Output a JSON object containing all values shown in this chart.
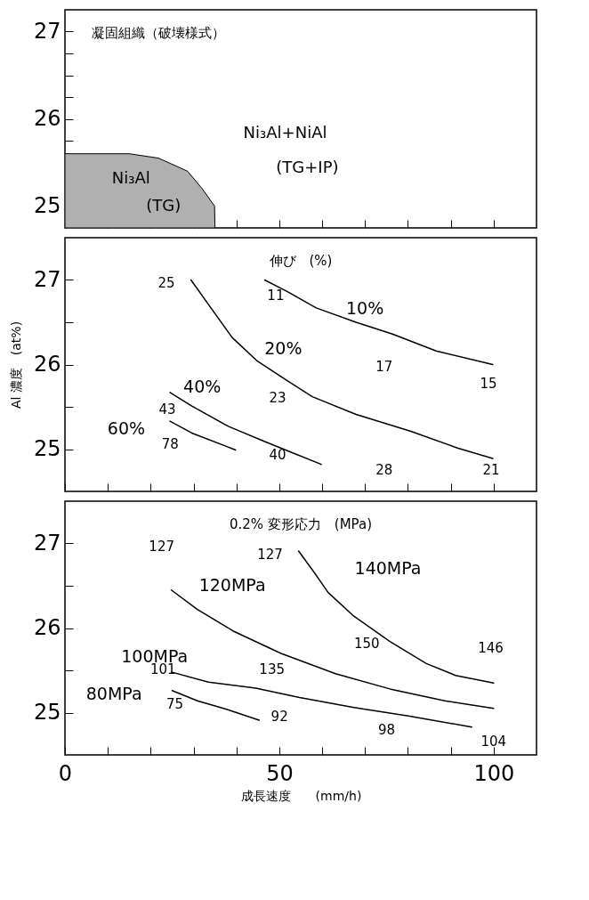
{
  "chart_data": [
    {
      "type": "area",
      "title": "凝固組織（破壊様式）",
      "tick_labels": "y",
      "xlim": [
        0,
        110
      ],
      "ylim": [
        24.75,
        27.25
      ],
      "xticks": [
        0,
        {
          "value": 10,
          "label": null
        },
        {
          "value": 20,
          "label": null
        },
        {
          "value": 30,
          "label": null
        },
        {
          "value": 40,
          "label": null
        },
        50,
        {
          "value": 60,
          "label": null
        },
        {
          "value": 70,
          "label": null
        },
        {
          "value": 80,
          "label": null
        },
        {
          "value": 90,
          "label": null
        },
        100
      ],
      "yticks": [
        25,
        {
          "value": 25.25,
          "label": null
        },
        {
          "value": 25.5,
          "label": null
        },
        {
          "value": 25.75,
          "label": null
        },
        26,
        {
          "value": 26.25,
          "label": null
        },
        {
          "value": 26.5,
          "label": null
        },
        {
          "value": 26.75,
          "label": null
        },
        27
      ],
      "series": [
        {
          "color": "#b0b0b0",
          "x": [
            0,
            15,
            21.8,
            28.6,
            32,
            34.9,
            35
          ],
          "values": [
            25.6,
            25.6,
            25.55,
            25.4,
            25.2,
            25.0,
            24.75
          ]
        }
      ],
      "annotations": [
        "Ni₃Al+NiAl",
        "(TG+IP)",
        "Ni₃Al",
        "(TG)"
      ]
    },
    {
      "type": "line",
      "title": "伸び　(%)",
      "ylabel": "Al 濃度　(at%)",
      "tick_labels": "y",
      "xlim": [
        0,
        110
      ],
      "ylim": [
        24.5,
        27.5
      ],
      "xticks": [
        0,
        {
          "value": 10,
          "label": null
        },
        {
          "value": 20,
          "label": null
        },
        {
          "value": 30,
          "label": null
        },
        {
          "value": 40,
          "label": null
        },
        50,
        {
          "value": 60,
          "label": null
        },
        {
          "value": 70,
          "label": null
        },
        {
          "value": 80,
          "label": null
        },
        {
          "value": 90,
          "label": null
        },
        100
      ],
      "yticks": [
        25,
        {
          "value": 25.5,
          "label": null
        },
        26,
        {
          "value": 26.5,
          "label": null
        },
        27
      ],
      "series": [
        {
          "name": "10%",
          "color": "#000000",
          "x": [
            46.6,
            52,
            58.6,
            67.9,
            76.4,
            86.6,
            99.8
          ],
          "values": [
            27.0,
            26.86,
            26.67,
            26.5,
            26.36,
            26.16,
            26.0
          ]
        },
        {
          "name": "20%",
          "color": "#000000",
          "x": [
            29.4,
            33.9,
            39,
            44.9,
            50.9,
            57.7,
            67.9,
            80.7,
            91.7,
            99.8
          ],
          "values": [
            27.0,
            26.68,
            26.32,
            26.04,
            25.84,
            25.62,
            25.41,
            25.21,
            25.01,
            24.89
          ]
        },
        {
          "name": "40%",
          "color": "#000000",
          "x": [
            24.5,
            29.6,
            38.1,
            46.6,
            53.4,
            59.8
          ],
          "values": [
            25.67,
            25.51,
            25.27,
            25.09,
            24.95,
            24.82
          ]
        },
        {
          "name": "60%",
          "color": "#000000",
          "x": [
            24.5,
            29.6,
            39.8
          ],
          "values": [
            25.33,
            25.19,
            24.99
          ]
        }
      ],
      "annotations": [
        "25",
        "11",
        "17",
        "15",
        "23",
        "43",
        "78",
        "40",
        "28",
        "21"
      ]
    },
    {
      "type": "line",
      "title": "0.2% 変形応力　(MPa)",
      "xlabel": "成長速度　　(mm/h)",
      "xlim": [
        0,
        110
      ],
      "ylim": [
        24.5,
        27.5
      ],
      "xticks": [
        0,
        {
          "value": 10,
          "label": null
        },
        {
          "value": 20,
          "label": null
        },
        {
          "value": 30,
          "label": null
        },
        {
          "value": 40,
          "label": null
        },
        50,
        {
          "value": 60,
          "label": null
        },
        {
          "value": 70,
          "label": null
        },
        {
          "value": 80,
          "label": null
        },
        {
          "value": 90,
          "label": null
        },
        100
      ],
      "yticks": [
        25,
        {
          "value": 25.5,
          "label": null
        },
        26,
        {
          "value": 26.5,
          "label": null
        },
        27
      ],
      "series": [
        {
          "name": "140MPa",
          "color": "#000000",
          "x": [
            54.5,
            58.1,
            61.4,
            67.4,
            75.8,
            84.3,
            91.1,
            100
          ],
          "values": [
            26.91,
            26.66,
            26.42,
            26.14,
            25.84,
            25.58,
            25.44,
            25.35
          ]
        },
        {
          "name": "120MPa",
          "color": "#000000",
          "x": [
            24.8,
            30.9,
            39.4,
            50.4,
            63.1,
            75.8,
            88.6,
            100
          ],
          "values": [
            26.45,
            26.22,
            25.96,
            25.7,
            25.46,
            25.28,
            25.14,
            25.05
          ]
        },
        {
          "name": "100MPa",
          "color": "#000000",
          "x": [
            24.8,
            33.5,
            44.5,
            54.7,
            67.4,
            80.1,
            94.9
          ],
          "values": [
            25.48,
            25.36,
            25.29,
            25.18,
            25.06,
            24.96,
            24.83
          ]
        },
        {
          "name": "80MPa",
          "color": "#000000",
          "x": [
            25,
            30.9,
            37.7,
            45.3
          ],
          "values": [
            25.26,
            25.14,
            25.04,
            24.91
          ]
        }
      ],
      "annotations": [
        "127",
        "127",
        "150",
        "146",
        "101",
        "135",
        "75",
        "92",
        "98",
        "104"
      ]
    }
  ]
}
